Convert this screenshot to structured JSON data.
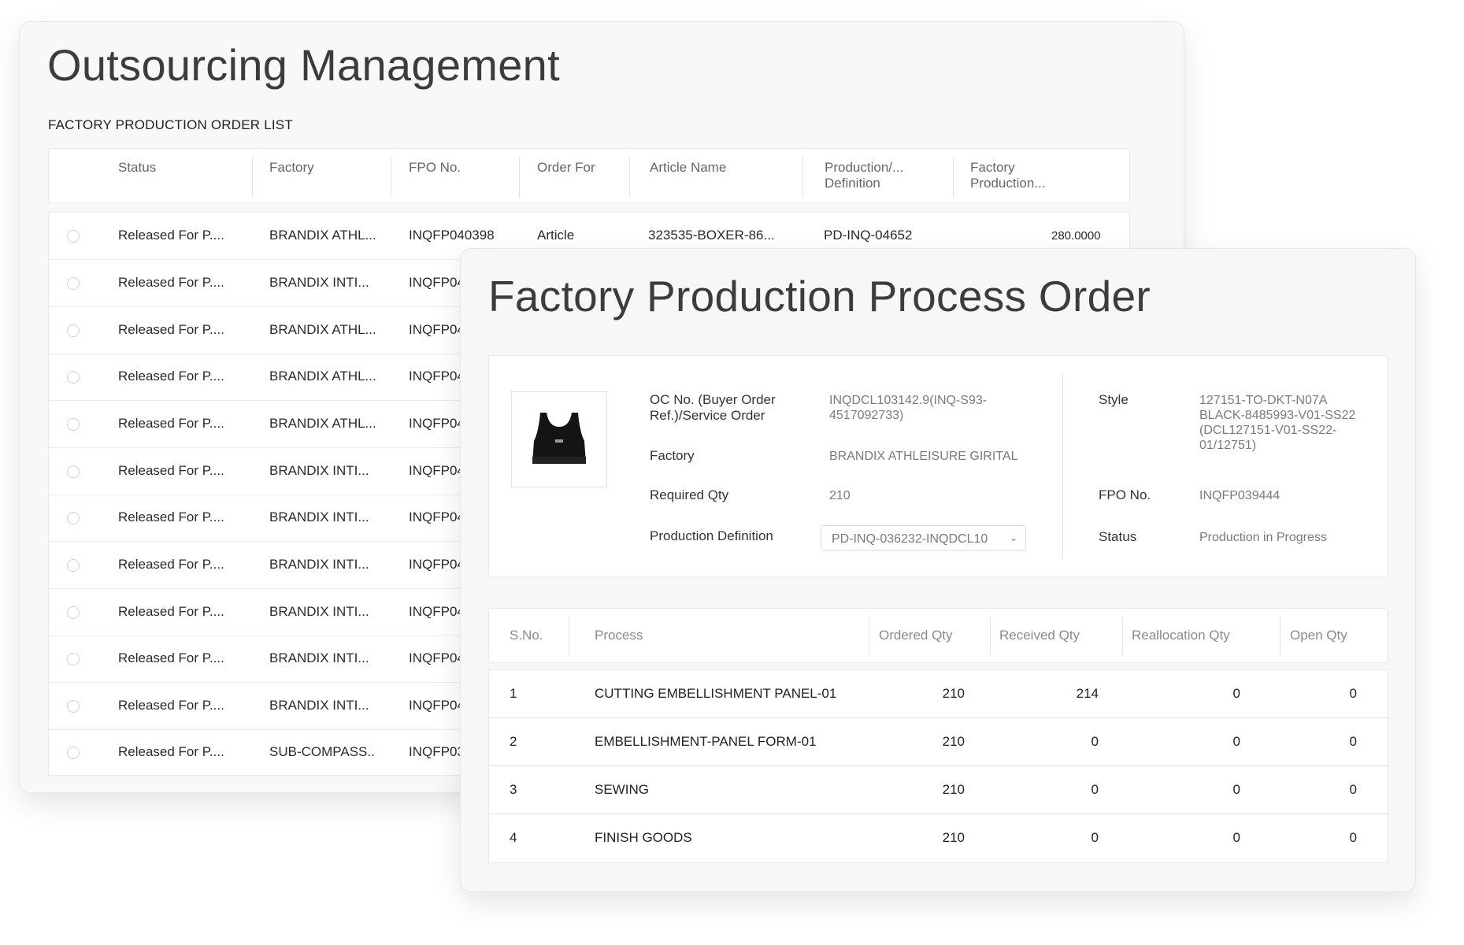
{
  "outsourcing": {
    "title": "Outsourcing Management",
    "list_title": "FACTORY PRODUCTION ORDER LIST",
    "columns": [
      "Status",
      "Factory",
      "FPO No.",
      "Order For",
      "Article Name",
      "Production/...\nDefinition",
      "Factory\nProduction..."
    ],
    "rows": [
      {
        "status": "Released For P....",
        "factory": "BRANDIX ATHL...",
        "fpo": "INQFP040398",
        "order_for": "Article",
        "article": "323535-BOXER-86...",
        "definition": "PD-INQ-04652",
        "qty": "280.0000"
      },
      {
        "status": "Released For P....",
        "factory": "BRANDIX INTI...",
        "fpo": "INQFP04"
      },
      {
        "status": "Released For P....",
        "factory": "BRANDIX ATHL...",
        "fpo": "INQFP04"
      },
      {
        "status": "Released For P....",
        "factory": "BRANDIX ATHL...",
        "fpo": "INQFP04"
      },
      {
        "status": "Released For P....",
        "factory": "BRANDIX ATHL...",
        "fpo": "INQFP04"
      },
      {
        "status": "Released For P....",
        "factory": "BRANDIX INTI...",
        "fpo": "INQFP04"
      },
      {
        "status": "Released For P....",
        "factory": "BRANDIX INTI...",
        "fpo": "INQFP04"
      },
      {
        "status": "Released For P....",
        "factory": "BRANDIX INTI...",
        "fpo": "INQFP04"
      },
      {
        "status": "Released For P....",
        "factory": "BRANDIX INTI...",
        "fpo": "INQFP04"
      },
      {
        "status": "Released For P....",
        "factory": "BRANDIX INTI...",
        "fpo": "INQFP04"
      },
      {
        "status": "Released For P....",
        "factory": "BRANDIX INTI...",
        "fpo": "INQFP04"
      },
      {
        "status": "Released For P....",
        "factory": "SUB-COMPASS..",
        "fpo": "INQFP03"
      }
    ]
  },
  "fppo": {
    "title": "Factory Production Process Order",
    "product_image": "sports-bra-image",
    "oc_label": "OC No. (Buyer Order\nRef.)/Service Order",
    "oc_value": "INQDCL103142.9(INQ-S93-\n4517092733)",
    "factory_label": "Factory",
    "factory_value": "BRANDIX ATHLEISURE GIRITAL",
    "required_label": "Required Qty",
    "required_value": "210",
    "definition_label": "Production Definition",
    "definition_value": "PD-INQ-036232-INQDCL10",
    "style_label": "Style",
    "style_value": "127151-TO-DKT-N07A\nBLACK-8485993-V01-SS22\n(DCL127151-V01-SS22-\n01/12751)",
    "fpo_label": "FPO No.",
    "fpo_value": "INQFP039444",
    "status_label": "Status",
    "status_value": "Production in Progress",
    "columns": [
      "S.No.",
      "Process",
      "Ordered Qty",
      "Received Qty",
      "Reallocation Qty",
      "Open Qty"
    ],
    "rows": [
      {
        "sno": "1",
        "process": "CUTTING EMBELLISHMENT PANEL-01",
        "ordered": "210",
        "received": "214",
        "realloc": "0",
        "open": "0"
      },
      {
        "sno": "2",
        "process": "EMBELLISHMENT-PANEL FORM-01",
        "ordered": "210",
        "received": "0",
        "realloc": "0",
        "open": "0"
      },
      {
        "sno": "3",
        "process": "SEWING",
        "ordered": "210",
        "received": "0",
        "realloc": "0",
        "open": "0"
      },
      {
        "sno": "4",
        "process": "FINISH GOODS",
        "ordered": "210",
        "received": "0",
        "realloc": "0",
        "open": "0"
      }
    ]
  }
}
